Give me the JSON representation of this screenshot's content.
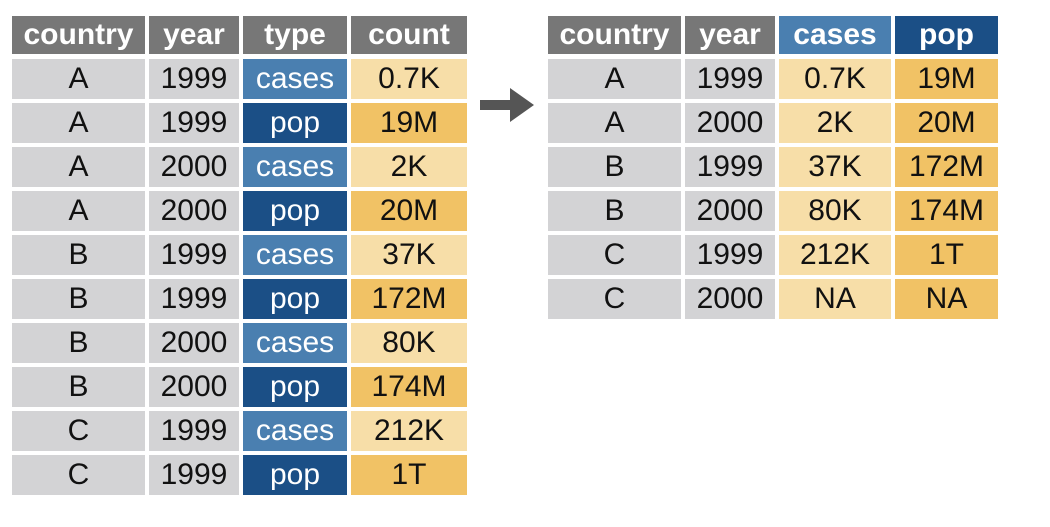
{
  "colors": {
    "header_gray": "#777777",
    "cases_blue": "#4a7fb0",
    "pop_blue": "#1b4f86",
    "cell_gray": "#d3d3d5",
    "cases_yellow": "#f7dea8",
    "pop_yellow": "#f1c265",
    "arrow": "#555555"
  },
  "icons": {
    "arrow": "right-arrow-icon"
  },
  "left_table": {
    "headers": [
      "country",
      "year",
      "type",
      "count"
    ],
    "rows": [
      [
        "A",
        "1999",
        "cases",
        "0.7K"
      ],
      [
        "A",
        "1999",
        "pop",
        "19M"
      ],
      [
        "A",
        "2000",
        "cases",
        "2K"
      ],
      [
        "A",
        "2000",
        "pop",
        "20M"
      ],
      [
        "B",
        "1999",
        "cases",
        "37K"
      ],
      [
        "B",
        "1999",
        "pop",
        "172M"
      ],
      [
        "B",
        "2000",
        "cases",
        "80K"
      ],
      [
        "B",
        "2000",
        "pop",
        "174M"
      ],
      [
        "C",
        "1999",
        "cases",
        "212K"
      ],
      [
        "C",
        "1999",
        "pop",
        "1T"
      ]
    ]
  },
  "right_table": {
    "headers": [
      "country",
      "year",
      "cases",
      "pop"
    ],
    "rows": [
      [
        "A",
        "1999",
        "0.7K",
        "19M"
      ],
      [
        "A",
        "2000",
        "2K",
        "20M"
      ],
      [
        "B",
        "1999",
        "37K",
        "172M"
      ],
      [
        "B",
        "2000",
        "80K",
        "174M"
      ],
      [
        "C",
        "1999",
        "212K",
        "1T"
      ],
      [
        "C",
        "2000",
        "NA",
        "NA"
      ]
    ]
  }
}
